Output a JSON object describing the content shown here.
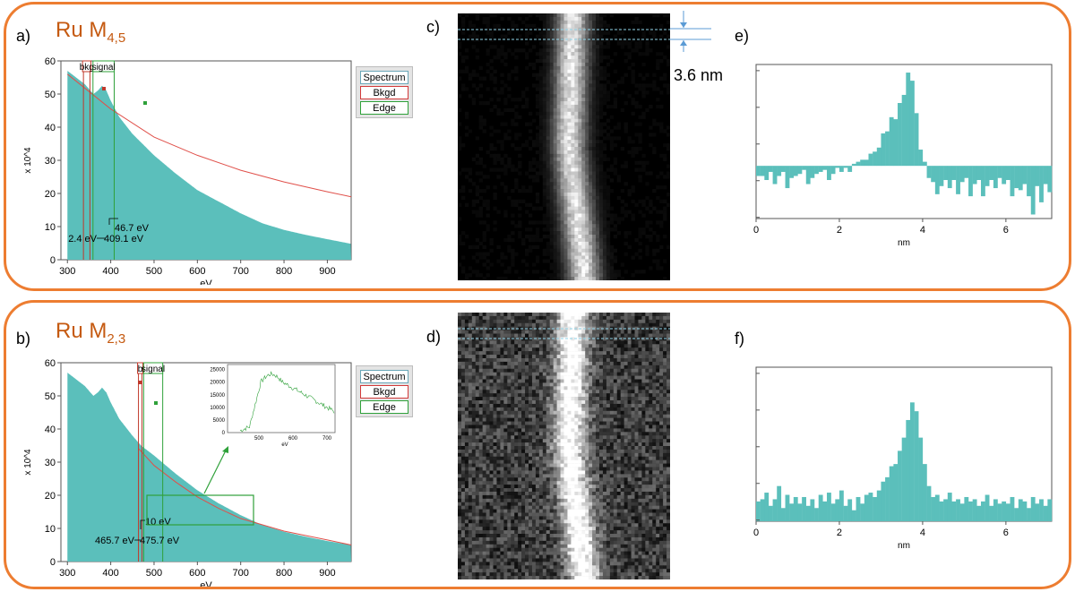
{
  "colors": {
    "frame": "#ed7d31",
    "title": "#c55a11",
    "spectrum_fill": "#5bbfbb",
    "background_fit": "#e0504a",
    "signal_window": "#2fa13a",
    "bkg_window": "#c0392b",
    "profile_fill": "#5bbfbb"
  },
  "panels": {
    "a": {
      "letter": "a)",
      "element": "Ru M",
      "subscript": "4,5"
    },
    "b": {
      "letter": "b)",
      "element": "Ru M",
      "subscript": "2,3"
    },
    "c": {
      "letter": "c)"
    },
    "d": {
      "letter": "d)"
    },
    "e": {
      "letter": "e)"
    },
    "f": {
      "letter": "f)"
    }
  },
  "scalebar": {
    "label": "3.6 nm"
  },
  "legend": {
    "spectrum": "Spectrum",
    "bkgd": "Bkgd",
    "edge": "Edge"
  },
  "spectrum_a": {
    "ylabel": "x 10^4",
    "xlabel": "eV",
    "xticks": [
      "300",
      "400",
      "500",
      "600",
      "700",
      "800",
      "900"
    ],
    "yticks": [
      "0",
      "10",
      "20",
      "30",
      "40",
      "50",
      "60"
    ],
    "window_labels": {
      "bkg": "bkg",
      "signal": "signal"
    },
    "annotations": [
      "46.7 eV",
      "2.4 eV",
      "409.1 eV"
    ]
  },
  "spectrum_b": {
    "ylabel": "x 10^4",
    "xlabel": "eV",
    "xticks": [
      "300",
      "400",
      "500",
      "600",
      "700",
      "800",
      "900"
    ],
    "yticks": [
      "0",
      "10",
      "20",
      "30",
      "40",
      "50",
      "60"
    ],
    "window_labels": {
      "bkg": "b",
      "signal": "signal"
    },
    "annotations": [
      "10 eV",
      "465.7 eV",
      "475.7 eV"
    ],
    "inset": {
      "xlabel": "eV",
      "xticks": [
        "500",
        "600",
        "700"
      ],
      "yticks": [
        "0",
        "5000",
        "10000",
        "15000",
        "20000",
        "25000"
      ]
    }
  },
  "profile_e": {
    "xlabel": "nm",
    "xticks": [
      "0",
      "2",
      "4",
      "6"
    ]
  },
  "profile_f": {
    "xlabel": "nm",
    "xticks": [
      "0",
      "2",
      "4",
      "6"
    ]
  },
  "chart_data": [
    {
      "type": "area",
      "panel": "a",
      "ylabel": "x 10^4",
      "xlabel": "eV",
      "xlim": [
        285,
        955
      ],
      "ylim": [
        0,
        60
      ],
      "series": [
        {
          "name": "Spectrum",
          "x": [
            300,
            320,
            340,
            360,
            370,
            380,
            390,
            400,
            420,
            450,
            500,
            550,
            600,
            650,
            700,
            750,
            800,
            850,
            900,
            955
          ],
          "values": [
            57,
            55,
            53,
            50,
            51,
            52.5,
            51,
            48,
            43,
            38,
            31.5,
            26,
            21,
            17.5,
            14,
            11,
            9,
            7.5,
            6.2,
            4.8
          ]
        },
        {
          "name": "Bkgd",
          "x": [
            300,
            400,
            500,
            600,
            700,
            800,
            900,
            955
          ],
          "values": [
            56,
            45.5,
            37,
            31.5,
            27,
            23.5,
            20.5,
            19
          ]
        }
      ],
      "annotations": [
        "46.7 eV",
        "2.4 eV",
        "409.1 eV"
      ]
    },
    {
      "type": "area",
      "panel": "b",
      "ylabel": "x 10^4",
      "xlabel": "eV",
      "xlim": [
        285,
        955
      ],
      "ylim": [
        0,
        60
      ],
      "series": [
        {
          "name": "Spectrum",
          "x": [
            300,
            320,
            340,
            360,
            370,
            380,
            390,
            400,
            420,
            450,
            470,
            500,
            550,
            600,
            650,
            700,
            750,
            800,
            850,
            900,
            955
          ],
          "values": [
            57,
            55,
            53,
            50,
            51,
            52.5,
            51,
            48,
            43,
            38,
            35,
            32,
            26.5,
            21.5,
            17.5,
            14,
            11,
            9,
            7.5,
            6.2,
            5
          ]
        },
        {
          "name": "Bkgd",
          "x": [
            465,
            500,
            550,
            600,
            650,
            700,
            800,
            900,
            955
          ],
          "values": [
            34,
            29,
            24,
            19.5,
            16,
            13,
            9.2,
            6.5,
            5
          ]
        }
      ],
      "annotations": [
        "10 eV",
        "465.7 eV",
        "475.7 eV"
      ]
    },
    {
      "type": "bar",
      "panel": "e",
      "xlabel": "nm",
      "xlim": [
        0,
        7.1
      ],
      "values": [
        -0.25,
        -0.25,
        -0.35,
        -0.15,
        -0.45,
        -0.25,
        -0.15,
        -0.55,
        -0.3,
        -0.25,
        -0.2,
        -0.1,
        -0.45,
        -0.3,
        -0.2,
        -0.15,
        -0.1,
        -0.35,
        -0.2,
        -0.05,
        -0.15,
        -0.05,
        -0.15,
        0.05,
        0.1,
        0.15,
        0.15,
        0.3,
        0.35,
        0.45,
        0.8,
        0.85,
        1.2,
        1.15,
        1.55,
        1.75,
        2.3,
        2.1,
        1.3,
        0.4,
        0.1,
        -0.3,
        -0.4,
        -0.7,
        -0.5,
        -0.35,
        -0.55,
        -0.35,
        -0.7,
        -0.4,
        -0.3,
        -0.75,
        -0.45,
        -0.35,
        -0.75,
        -0.5,
        -0.35,
        -0.55,
        -0.3,
        -0.45,
        -0.35,
        -0.75,
        -0.55,
        -0.6,
        -0.45,
        -0.75,
        -1.2,
        -0.5,
        -0.9,
        -0.45,
        -0.65
      ]
    },
    {
      "type": "bar",
      "panel": "f",
      "xlabel": "nm",
      "xlim": [
        0,
        7.1
      ],
      "values": [
        0.45,
        0.5,
        0.65,
        0.35,
        0.5,
        0.8,
        0.3,
        0.6,
        0.4,
        0.55,
        0.4,
        0.55,
        0.35,
        0.5,
        0.3,
        0.6,
        0.45,
        0.65,
        0.4,
        0.5,
        0.7,
        0.35,
        0.5,
        0.25,
        0.55,
        0.4,
        0.6,
        0.65,
        0.55,
        0.7,
        0.9,
        1.0,
        1.25,
        1.3,
        1.6,
        1.9,
        2.3,
        2.7,
        2.5,
        1.9,
        1.3,
        0.8,
        0.55,
        0.6,
        0.45,
        0.5,
        0.65,
        0.45,
        0.5,
        0.4,
        0.55,
        0.45,
        0.5,
        0.35,
        0.45,
        0.6,
        0.35,
        0.5,
        0.4,
        0.45,
        0.4,
        0.55,
        0.3,
        0.5,
        0.45,
        0.3,
        0.55,
        0.4,
        0.5,
        0.35,
        0.5
      ]
    }
  ]
}
